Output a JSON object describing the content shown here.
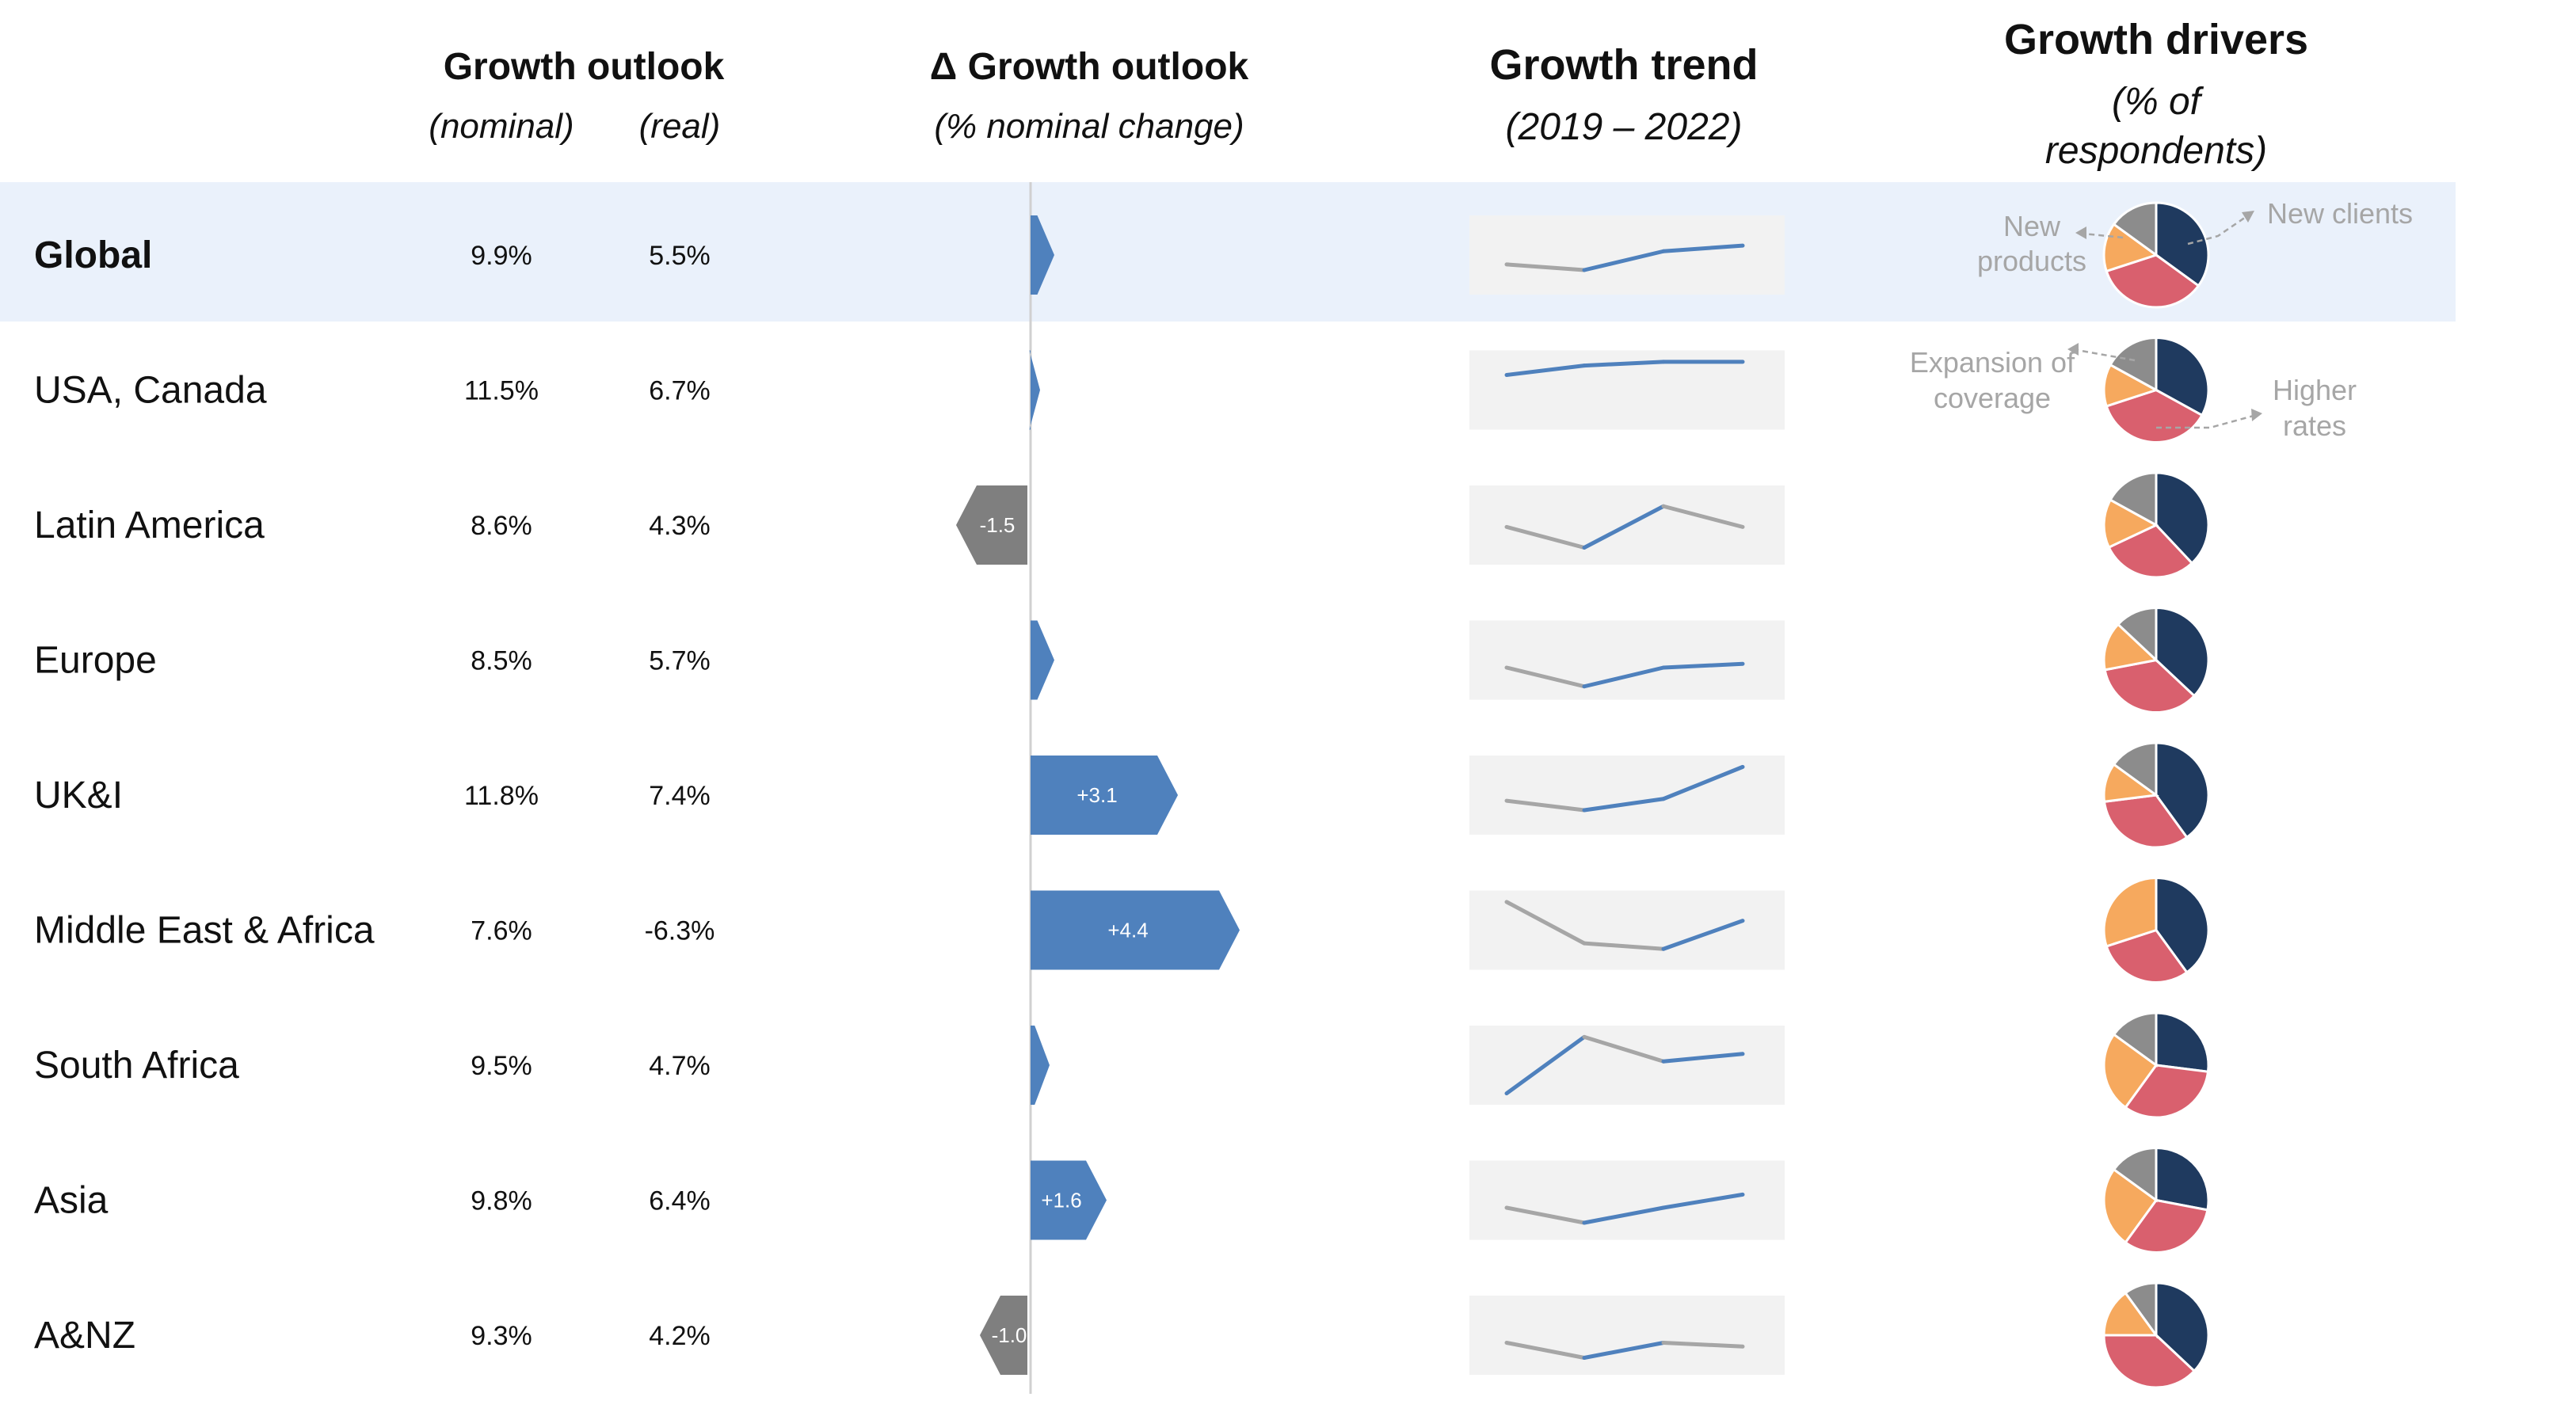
{
  "headers": {
    "growth_outlook": "Growth outlook",
    "nominal": "(nominal)",
    "real": "(real)",
    "delta_title": "Δ Growth outlook",
    "delta_sub": "(% nominal change)",
    "trend_title": "Growth trend",
    "trend_sub": "(2019 – 2022)",
    "drivers_title": "Growth drivers",
    "drivers_sub1": "(% of",
    "drivers_sub2": "respondents)"
  },
  "driver_annotations": {
    "new_products_1": "New",
    "new_products_2": "products",
    "new_clients": "New clients",
    "expansion_1": "Expansion of",
    "expansion_2": "coverage",
    "higher_rates_1": "Higher",
    "higher_rates_2": "rates"
  },
  "colors": {
    "highlight_row": "#eaf1fb",
    "positive_bar": "#4f81bd",
    "negative_bar": "#7f7f7f",
    "trend_bg": "#f2f2f2",
    "trend_up": "#4f81bd",
    "trend_down": "#a6a6a6",
    "pie_new_clients": "#1f3a5f",
    "pie_higher_rates": "#d9606e",
    "pie_expansion": "#f6a95e",
    "pie_new_products": "#8c8c8c",
    "annotation": "#a6a6a6"
  },
  "chart_data": {
    "type": "table",
    "rows": [
      {
        "region": "Global",
        "nominal": "9.9%",
        "real": "5.5%",
        "delta": 0.5,
        "delta_label": "",
        "trend": [
          0.5,
          0.2,
          1.2,
          1.5
        ],
        "drivers": {
          "new_clients": 35,
          "higher_rates": 35,
          "expansion": 15,
          "new_products": 15
        },
        "highlight": true
      },
      {
        "region": "USA, Canada",
        "nominal": "11.5%",
        "real": "6.7%",
        "delta": 0.2,
        "delta_label": "",
        "trend": [
          1.8,
          2.3,
          2.5,
          2.5
        ],
        "drivers": {
          "new_clients": 33,
          "higher_rates": 37,
          "expansion": 13,
          "new_products": 17
        }
      },
      {
        "region": "Latin America",
        "nominal": "8.6%",
        "real": "4.3%",
        "delta": -1.5,
        "delta_label": "-1.5",
        "trend": [
          0.9,
          -0.2,
          2.0,
          0.9
        ],
        "drivers": {
          "new_clients": 38,
          "higher_rates": 30,
          "expansion": 15,
          "new_products": 17
        }
      },
      {
        "region": "Europe",
        "nominal": "8.5%",
        "real": "5.7%",
        "delta": 0.5,
        "delta_label": "",
        "trend": [
          0.6,
          -0.4,
          0.6,
          0.8
        ],
        "drivers": {
          "new_clients": 37,
          "higher_rates": 35,
          "expansion": 15,
          "new_products": 13
        }
      },
      {
        "region": "UK&I",
        "nominal": "11.8%",
        "real": "7.4%",
        "delta": 3.1,
        "delta_label": "+3.1",
        "trend": [
          0.7,
          0.2,
          0.8,
          2.5
        ],
        "drivers": {
          "new_clients": 40,
          "higher_rates": 33,
          "expansion": 12,
          "new_products": 15
        }
      },
      {
        "region": "Middle East & Africa",
        "nominal": "7.6%",
        "real": "-6.3%",
        "delta": 4.4,
        "delta_label": "+4.4",
        "trend": [
          2.5,
          0.3,
          0.0,
          1.5
        ],
        "drivers": {
          "new_clients": 40,
          "higher_rates": 30,
          "expansion": 30,
          "new_products": 0
        }
      },
      {
        "region": "South Africa",
        "nominal": "9.5%",
        "real": "4.7%",
        "delta": 0.4,
        "delta_label": "",
        "trend": [
          -0.5,
          2.5,
          1.2,
          1.6
        ],
        "drivers": {
          "new_clients": 27,
          "higher_rates": 33,
          "expansion": 25,
          "new_products": 15
        }
      },
      {
        "region": "Asia",
        "nominal": "9.8%",
        "real": "6.4%",
        "delta": 1.6,
        "delta_label": "+1.6",
        "trend": [
          0.6,
          -0.2,
          0.6,
          1.3
        ],
        "drivers": {
          "new_clients": 28,
          "higher_rates": 32,
          "expansion": 25,
          "new_products": 15
        }
      },
      {
        "region": "A&NZ",
        "nominal": "9.3%",
        "real": "4.2%",
        "delta": -1.0,
        "delta_label": "-1.0",
        "trend": [
          0.6,
          -0.2,
          0.6,
          0.4
        ],
        "drivers": {
          "new_clients": 37,
          "higher_rates": 38,
          "expansion": 15,
          "new_products": 10
        }
      }
    ]
  }
}
